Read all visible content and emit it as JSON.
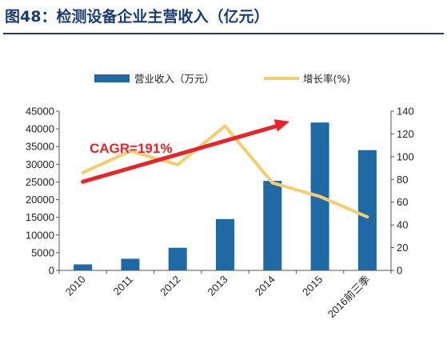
{
  "figure": {
    "title": "图48：检测设备企业主营收入（亿元）"
  },
  "chart_data": {
    "type": "bar",
    "categories": [
      "2010",
      "2011",
      "2012",
      "2013",
      "2014",
      "2015",
      "2016前三季"
    ],
    "series": [
      {
        "name": "营业收入（万元）",
        "type": "bar",
        "axis": "left",
        "color": "#1f6aa5",
        "values": [
          1700,
          3300,
          6400,
          14500,
          25300,
          41800,
          34000
        ]
      },
      {
        "name": "增长率(%)",
        "type": "line",
        "axis": "right",
        "color": "#f2cf6e",
        "values": [
          86,
          105,
          93,
          127,
          77,
          65,
          47
        ]
      }
    ],
    "y_left": {
      "min": 0,
      "max": 45000,
      "step": 5000
    },
    "y_right": {
      "min": 0,
      "max": 140,
      "step": 20
    },
    "legend_position": "top",
    "grid": false,
    "annotation": {
      "text": "CAGR=191%",
      "color": "#e8242a",
      "arrow": {
        "from": {
          "category": "2010",
          "y_right": 78
        },
        "to": {
          "category": "2015",
          "y_right": 131
        }
      }
    }
  }
}
